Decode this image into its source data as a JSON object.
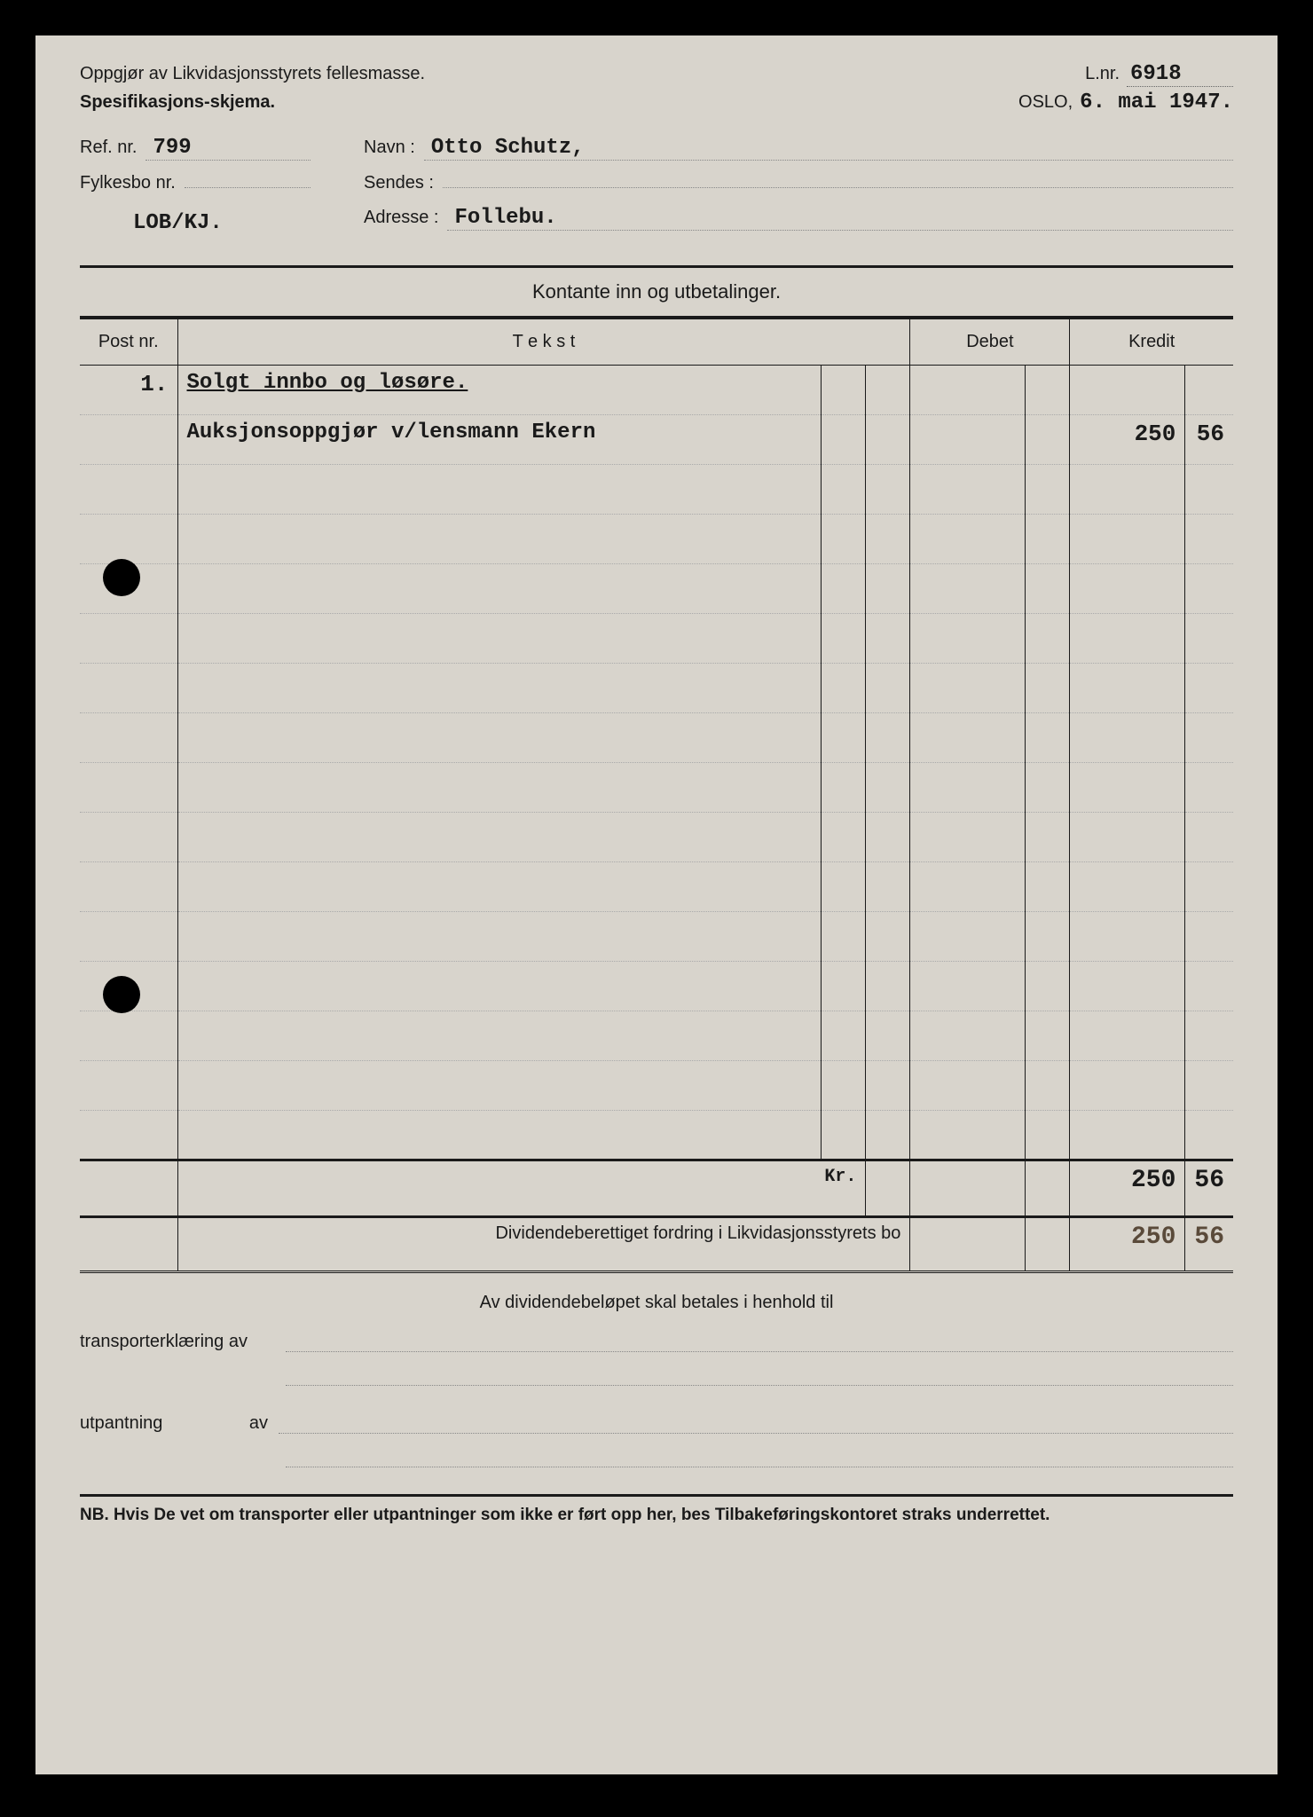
{
  "header": {
    "title_line1": "Oppgjør av Likvidasjonsstyrets fellesmasse.",
    "title_line2": "Spesifikasjons-skjema.",
    "lnr_label": "L.nr.",
    "lnr_value": "6918",
    "oslo_label": "OSLO,",
    "date_value": "6. mai 1947."
  },
  "meta": {
    "ref_label": "Ref. nr.",
    "ref_value": "799",
    "fylkesbo_label": "Fylkesbo nr.",
    "fylkesbo_value": "",
    "clerk": "LOB/KJ.",
    "navn_label": "Navn :",
    "navn_value": "Otto Schutz,",
    "sendes_label": "Sendes :",
    "sendes_value": "",
    "adresse_label": "Adresse :",
    "adresse_value": "Follebu."
  },
  "section_title": "Kontante inn og utbetalinger.",
  "columns": {
    "post": "Post nr.",
    "tekst": "T e k s t",
    "debet": "Debet",
    "kredit": "Kredit"
  },
  "rows": [
    {
      "post": "1.",
      "tekst": "Solgt innbo og løsøre.",
      "underlined": true,
      "debet_main": "",
      "debet_sub": "",
      "kredit_main": "",
      "kredit_sub": ""
    },
    {
      "post": "",
      "tekst": "Auksjonsoppgjør v/lensmann Ekern",
      "underlined": false,
      "debet_main": "",
      "debet_sub": "",
      "kredit_main": "250",
      "kredit_sub": "56"
    }
  ],
  "totals": {
    "kr_label": "Kr.",
    "debet_main": "",
    "debet_sub": "",
    "kredit_main": "250",
    "kredit_sub": "56"
  },
  "grand": {
    "label": "Dividendeberettiget fordring i Likvidasjonsstyrets bo",
    "debet_main": "",
    "debet_sub": "",
    "kredit_main": "250",
    "kredit_sub": "56"
  },
  "footer": {
    "center": "Av dividendebeløpet skal betales i henhold til",
    "transport_label": "transporterklæring av",
    "utpantning_label": "utpantning",
    "av_label": "av",
    "nb": "NB.  Hvis De vet om transporter eller utpantninger som ikke er ført opp her, bes Tilbakeføringskontoret straks underrettet."
  },
  "style": {
    "page_bg": "#d8d4cc",
    "ink": "#1a1a1a",
    "typed_font": "Courier New",
    "blank_body_rows": 14
  }
}
